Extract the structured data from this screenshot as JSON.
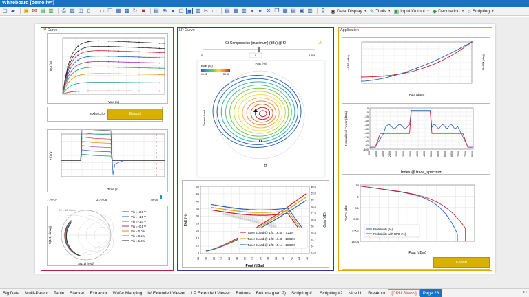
{
  "window": {
    "title": "Whiteboard [demo.iw*]"
  },
  "toolbar": {
    "menus": [
      {
        "label": "Data Display",
        "icon": "data-display-icon"
      },
      {
        "label": "Tools",
        "icon": "wrench-icon"
      },
      {
        "label": "Input/Output",
        "icon": "input-output-icon"
      },
      {
        "label": "Decoration",
        "icon": "tag-icon"
      },
      {
        "label": "Scripting",
        "icon": "script-icon"
      }
    ]
  },
  "panels": {
    "iv": {
      "title": "IV Curve",
      "iv_xlabel": "Vout (V)",
      "iv_ylabel": "Iout (A)",
      "action_text": "extractio",
      "action_button": "Export",
      "time_xlabel": "Time (s)",
      "time_ylabel": "V(t) (V)",
      "range_min": "7.7e-07",
      "range_mid": "2.7e-06",
      "range_max": "7e-06",
      "smith_title": "Zs = 10 ohms",
      "smith_xlabel": "S(1,1) (real)",
      "smith_ylabel": "S(1,1) (imag)",
      "legend": [
        "Vin = -2.0 V",
        "Vin = -1.5 V",
        "Vin = -1.0 V",
        "Vin = -0.5 V",
        "Vin = 0.0 V",
        "Vin = 0.5 V",
        "Vin = 1.0 V"
      ]
    },
    "lp": {
      "title": "LP Curve",
      "slider_label": "Gt Compression (maximum) (dBc) @ f0",
      "slider_min": "0",
      "slider_max": "8.859",
      "slider_val": "0",
      "contour_title": "PAE (%)",
      "cbar_min": "10.61",
      "cbar_max": "83.86",
      "gamma_label": "Gamma Load",
      "pae_ylabel": "PAE (%)",
      "gain_ylabel": "Gain (dB)",
      "pout_xlabel": "Pout (dBm)",
      "pae_ticks": [
        "50",
        "45",
        "40",
        "35",
        "30",
        "25",
        "20",
        "15",
        "10",
        "5"
      ],
      "gain_ticks": [
        "30.5",
        "29.8",
        "29",
        "28.3",
        "27.5",
        "26.8",
        "26",
        "25.3",
        "24.7",
        "24",
        "23.9"
      ],
      "pout_ticks": [
        "18",
        "20",
        "22",
        "24",
        "26",
        "28",
        "30",
        "32",
        "34",
        "36",
        "38",
        "40",
        "42",
        "44",
        "46"
      ],
      "legend": [
        "Tuner 2Load @ 1.f0: 18.45 - 7.23%",
        "Tuner 2Load @ 1.f0: 16.45 - 13.92%",
        "Tuner 2Load @ 1.f0: 15.14 - 18.93%"
      ],
      "legend_colors": [
        "#d21f2f",
        "#e0a400",
        "#2a63c0"
      ]
    },
    "app": {
      "title": "Application",
      "top_xlabel": "Pout (dBm)",
      "top_ylabel": "ACPR (dBc)",
      "top_ylabel2": "AM/PM (deg)",
      "spec_xlabel": "Index @ trace_spectrum",
      "spec_ylabel": "Normalized Power (dBm)",
      "spec_yticks": [
        "0",
        "-10",
        "-20",
        "-30",
        "-40",
        "-50",
        "-60",
        "-70",
        "-80",
        "-90",
        "-100"
      ],
      "spec_xticks": [
        "500",
        "1000",
        "1500",
        "2000",
        "2500",
        "3000",
        "3500",
        "4000",
        "4500",
        "5000",
        "5500",
        "6000",
        "6500",
        "7000",
        "7500",
        "8000"
      ],
      "ampm_xlabel": "Pout (dBm)",
      "ampm_ylabel": "AMPM (dB)",
      "ampm_yticks": [
        "10",
        "1",
        "0.1",
        "0.01",
        "0.001",
        "1E-04"
      ],
      "legend": [
        "Probability (%)",
        "Probability with DPD (%)"
      ],
      "export_button": "Export"
    }
  },
  "tabs": [
    {
      "label": "Big Data",
      "state": ""
    },
    {
      "label": "Multi-Parent",
      "state": ""
    },
    {
      "label": "Table",
      "state": ""
    },
    {
      "label": "Stacker",
      "state": ""
    },
    {
      "label": "Extractor",
      "state": ""
    },
    {
      "label": "Wafer Mapping",
      "state": ""
    },
    {
      "label": "IV Extended Viewer",
      "state": ""
    },
    {
      "label": "LP Extended Viewer",
      "state": ""
    },
    {
      "label": "Buttons",
      "state": ""
    },
    {
      "label": "Buttons (part 2)",
      "state": ""
    },
    {
      "label": "Scripting #1",
      "state": ""
    },
    {
      "label": "Scripting #2",
      "state": ""
    },
    {
      "label": "Nice UI",
      "state": ""
    },
    {
      "label": "Breakout",
      "state": ""
    },
    {
      "label": "[CPU Stress]",
      "state": "hl"
    },
    {
      "label": "Page 26",
      "state": "active"
    }
  ],
  "colors": {
    "accent": "#1873c6",
    "panel_border": "#c4203a",
    "lp_border": "#2d3c9e",
    "app_border": "#e6a700",
    "button": "#d8b000"
  }
}
